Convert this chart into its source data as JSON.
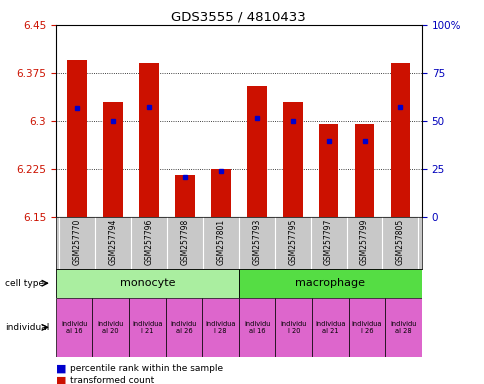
{
  "title": "GDS3555 / 4810433",
  "samples": [
    "GSM257770",
    "GSM257794",
    "GSM257796",
    "GSM257798",
    "GSM257801",
    "GSM257793",
    "GSM257795",
    "GSM257797",
    "GSM257799",
    "GSM257805"
  ],
  "red_values": [
    6.395,
    6.33,
    6.39,
    6.215,
    6.225,
    6.355,
    6.33,
    6.295,
    6.295,
    6.39
  ],
  "blue_values": [
    6.32,
    6.3,
    6.322,
    6.213,
    6.222,
    6.305,
    6.3,
    6.268,
    6.268,
    6.322
  ],
  "ylim": [
    6.15,
    6.45
  ],
  "yticks": [
    6.15,
    6.225,
    6.3,
    6.375,
    6.45
  ],
  "ytick_labels": [
    "6.15",
    "6.225",
    "6.3",
    "6.375",
    "6.45"
  ],
  "right_yticks": [
    0,
    25,
    50,
    75,
    100
  ],
  "right_ytick_labels": [
    "0",
    "25",
    "50",
    "75",
    "100%"
  ],
  "bar_color": "#cc1100",
  "dot_color": "#0000cc",
  "bar_base": 6.15,
  "monocyte_color": "#aaeea0",
  "macrophage_color": "#55dd44",
  "individual_color": "#dd66cc",
  "grid_color": "#000000",
  "xlabel_color": "#cc1100",
  "right_ylabel_color": "#0000bb",
  "individual_labels": [
    "individu\nal 16",
    "individu\nal 20",
    "individua\nl 21",
    "individu\nal 26",
    "individua\nl 28",
    "individu\nal 16",
    "individu\nl 20",
    "individua\nal 21",
    "individua\nl 26",
    "individu\nal 28"
  ],
  "gray_bg": "#c8c8c8"
}
